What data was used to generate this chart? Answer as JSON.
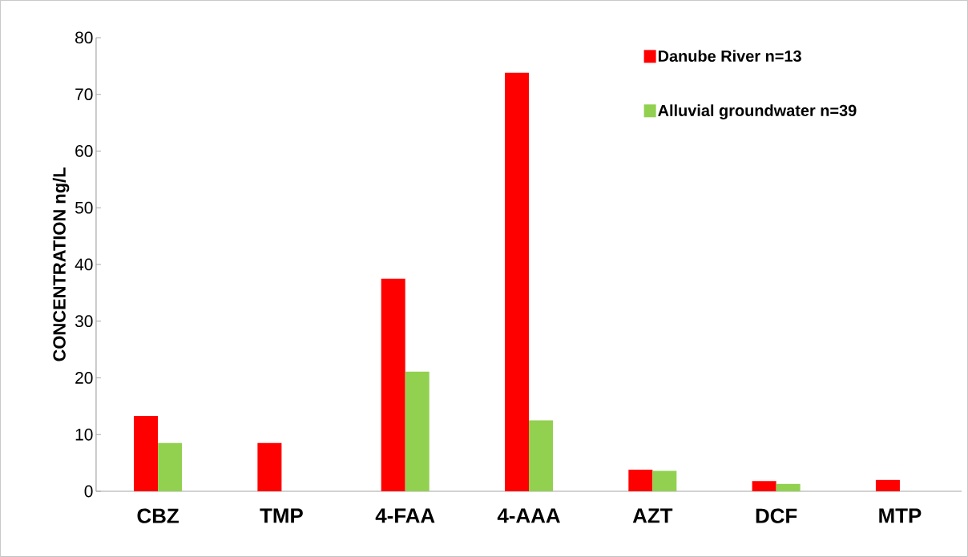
{
  "chart_data": {
    "type": "bar",
    "ylabel": "CONCENTRATION ng/L",
    "categories": [
      "CBZ",
      "TMP",
      "4-FAA",
      "4-AAA",
      "AZT",
      "DCF",
      "MTP"
    ],
    "series": [
      {
        "name": "Danube River n=13",
        "color": "#ff0000",
        "values": [
          13.3,
          8.5,
          37.5,
          73.8,
          3.8,
          1.8,
          2.0
        ]
      },
      {
        "name": "Alluvial groundwater n=39",
        "color": "#92d050",
        "values": [
          8.5,
          null,
          21.1,
          12.5,
          3.6,
          1.3,
          null
        ]
      }
    ],
    "ylim": [
      0,
      80
    ],
    "yticks": [
      0,
      10,
      20,
      30,
      40,
      50,
      60,
      70,
      80
    ],
    "grid": false,
    "legend": "top right"
  }
}
